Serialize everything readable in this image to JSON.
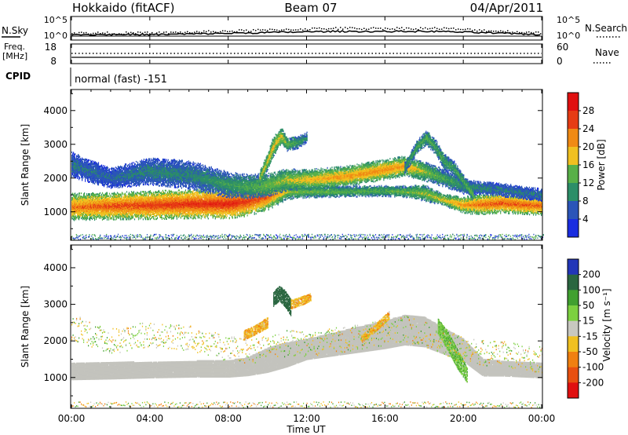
{
  "header": {
    "radar": "Hokkaido (fitACF)",
    "beam": "Beam 07",
    "date": "04/Apr/2011"
  },
  "noise_panel": {
    "left_label": "N.Sky",
    "right_label": "N.Search",
    "ticks_left": [
      "10^5",
      "10^0"
    ],
    "ticks_right": [
      "10^5",
      "10^0"
    ]
  },
  "freq_panel": {
    "left_label_1": "Freq.",
    "left_label_2": "[MHz]",
    "right_label": "Nave",
    "ticks_left": [
      "18",
      "8"
    ],
    "ticks_right": [
      "60",
      "0"
    ]
  },
  "cpid": {
    "label": "CPID",
    "value": "normal (fast) -151"
  },
  "x_axis": {
    "label": "Time UT",
    "ticks": [
      "00:00",
      "04:00",
      "08:00",
      "12:00",
      "16:00",
      "20:00",
      "00:00"
    ]
  },
  "colors": {
    "ground_scatter": "#c3c3bd",
    "power_scale": [
      "#1a2de0",
      "#2b55b8",
      "#2c8e68",
      "#58b048",
      "#f0c020",
      "#f08a14",
      "#e63c14",
      "#e01010"
    ],
    "velocity_scale": [
      "#2236b8",
      "#2a6640",
      "#40a030",
      "#7cd040",
      "#c8c8c0",
      "#f0c020",
      "#f08010",
      "#e85010",
      "#e01010"
    ]
  },
  "chart_data": [
    {
      "type": "heatmap",
      "title": "",
      "xlabel": "Time UT",
      "ylabel": "Slant Range [km]",
      "xlim_hours": [
        0,
        24
      ],
      "ylim": [
        180,
        4600
      ],
      "yticks": [
        "1000",
        "2000",
        "3000",
        "4000"
      ],
      "colorbar": {
        "label": "Power [dB]",
        "ticks": [
          "4",
          "8",
          "12",
          "16",
          "20",
          "24",
          "28"
        ],
        "range": [
          0,
          30
        ]
      },
      "series": [
        {
          "t": [
            0.0,
            2.0,
            4.0,
            6.0,
            8.0,
            9.0,
            10.0,
            11.0,
            12.0,
            14.0,
            16.0,
            17.0,
            18.0,
            19.0,
            20.0,
            21.0,
            22.0,
            24.0
          ],
          "center": [
            1150,
            1170,
            1200,
            1230,
            1240,
            1310,
            1450,
            1600,
            1600,
            1600,
            1620,
            1600,
            1560,
            1350,
            1200,
            1230,
            1260,
            1180
          ],
          "width": [
            400,
            400,
            420,
            430,
            440,
            440,
            400,
            240,
            180,
            160,
            160,
            170,
            240,
            170,
            260,
            300,
            300,
            280
          ],
          "power": [
            22,
            24,
            25,
            26,
            27,
            25,
            23,
            15,
            14,
            13,
            13,
            14,
            15,
            17,
            20,
            23,
            24,
            23
          ]
        },
        {
          "t": [
            0.0,
            2.0,
            4.0,
            6.0,
            8.0,
            9.0,
            10.0,
            11.0,
            12.0,
            14.0,
            16.0,
            17.0,
            18.0,
            19.0,
            20.0,
            21.0,
            22.0,
            24.0
          ],
          "center": [
            2400,
            2000,
            2200,
            2100,
            1800,
            1750,
            1800,
            1950,
            1950,
            2050,
            2250,
            2350,
            2200,
            2000,
            1750,
            1700,
            1650,
            1500
          ],
          "width": [
            380,
            300,
            400,
            420,
            380,
            360,
            340,
            320,
            300,
            300,
            300,
            300,
            280,
            260,
            220,
            200,
            200,
            180
          ],
          "power": [
            8,
            7,
            9,
            9,
            11,
            12,
            14,
            16,
            18,
            20,
            21,
            20,
            15,
            12,
            10,
            9,
            8,
            8
          ]
        },
        {
          "t": [
            9.6,
            10.0,
            10.3,
            10.7,
            11.0,
            11.5,
            12.0
          ],
          "center": [
            2000,
            2500,
            2950,
            3250,
            3000,
            3050,
            3200
          ],
          "width": [
            200,
            250,
            300,
            250,
            200,
            180,
            160
          ],
          "power": [
            16,
            17,
            18,
            17,
            14,
            11,
            10
          ]
        },
        {
          "t": [
            17.0,
            17.6,
            18.1,
            18.6,
            19.0,
            19.5,
            20.0,
            20.5
          ],
          "center": [
            2300,
            2900,
            3200,
            2900,
            2500,
            2300,
            1900,
            1500
          ],
          "width": [
            180,
            200,
            220,
            220,
            240,
            220,
            200,
            180
          ],
          "power": [
            10,
            12,
            13,
            12,
            12,
            11,
            12,
            15
          ]
        }
      ]
    },
    {
      "type": "heatmap",
      "title": "",
      "xlabel": "Time UT",
      "ylabel": "Slant Range [km]",
      "xlim_hours": [
        0,
        24
      ],
      "ylim": [
        180,
        4600
      ],
      "yticks": [
        "1000",
        "2000",
        "3000",
        "4000"
      ],
      "colorbar": {
        "label": "Velocity [m s⁻¹]",
        "ticks": [
          "200",
          "100",
          "50",
          "15",
          "-15",
          "-50",
          "-100",
          "-200"
        ],
        "range": [
          -250,
          250
        ]
      },
      "ground_scatter": {
        "t": [
          0.0,
          2.0,
          4.0,
          6.0,
          8.0,
          9.0,
          10.0,
          11.0,
          12.0,
          14.0,
          16.0,
          17.0,
          18.0,
          20.0,
          21.0,
          22.0,
          24.0
        ],
        "low": [
          950,
          970,
          1000,
          1020,
          1020,
          1060,
          1150,
          1300,
          1500,
          1650,
          1800,
          1900,
          1850,
          1450,
          1050,
          1050,
          1000
        ],
        "high": [
          1400,
          1420,
          1420,
          1450,
          1460,
          1550,
          1800,
          1950,
          2050,
          2300,
          2550,
          2700,
          2650,
          2050,
          1500,
          1450,
          1400
        ]
      },
      "features": [
        {
          "t": [
            10.3,
            10.6,
            10.9,
            11.2
          ],
          "center": [
            3150,
            3300,
            3150,
            2900
          ],
          "width": [
            200,
            200,
            220,
            220
          ],
          "velocity": 140
        },
        {
          "t": [
            8.8,
            9.4,
            10.0
          ],
          "center": [
            2150,
            2300,
            2500
          ],
          "width": [
            120,
            120,
            140
          ],
          "velocity": -40
        },
        {
          "t": [
            11.2,
            11.8,
            12.2
          ],
          "center": [
            3000,
            3100,
            3200
          ],
          "width": [
            120,
            110,
            100
          ],
          "velocity": -40
        },
        {
          "t": [
            18.7,
            19.2,
            19.7,
            20.2
          ],
          "center": [
            2400,
            2000,
            1500,
            1050
          ],
          "width": [
            200,
            260,
            260,
            200
          ],
          "velocity": 40
        },
        {
          "t": [
            14.8,
            15.5,
            16.2
          ],
          "center": [
            2050,
            2350,
            2700
          ],
          "width": [
            100,
            100,
            100
          ],
          "velocity": -40
        }
      ]
    }
  ]
}
